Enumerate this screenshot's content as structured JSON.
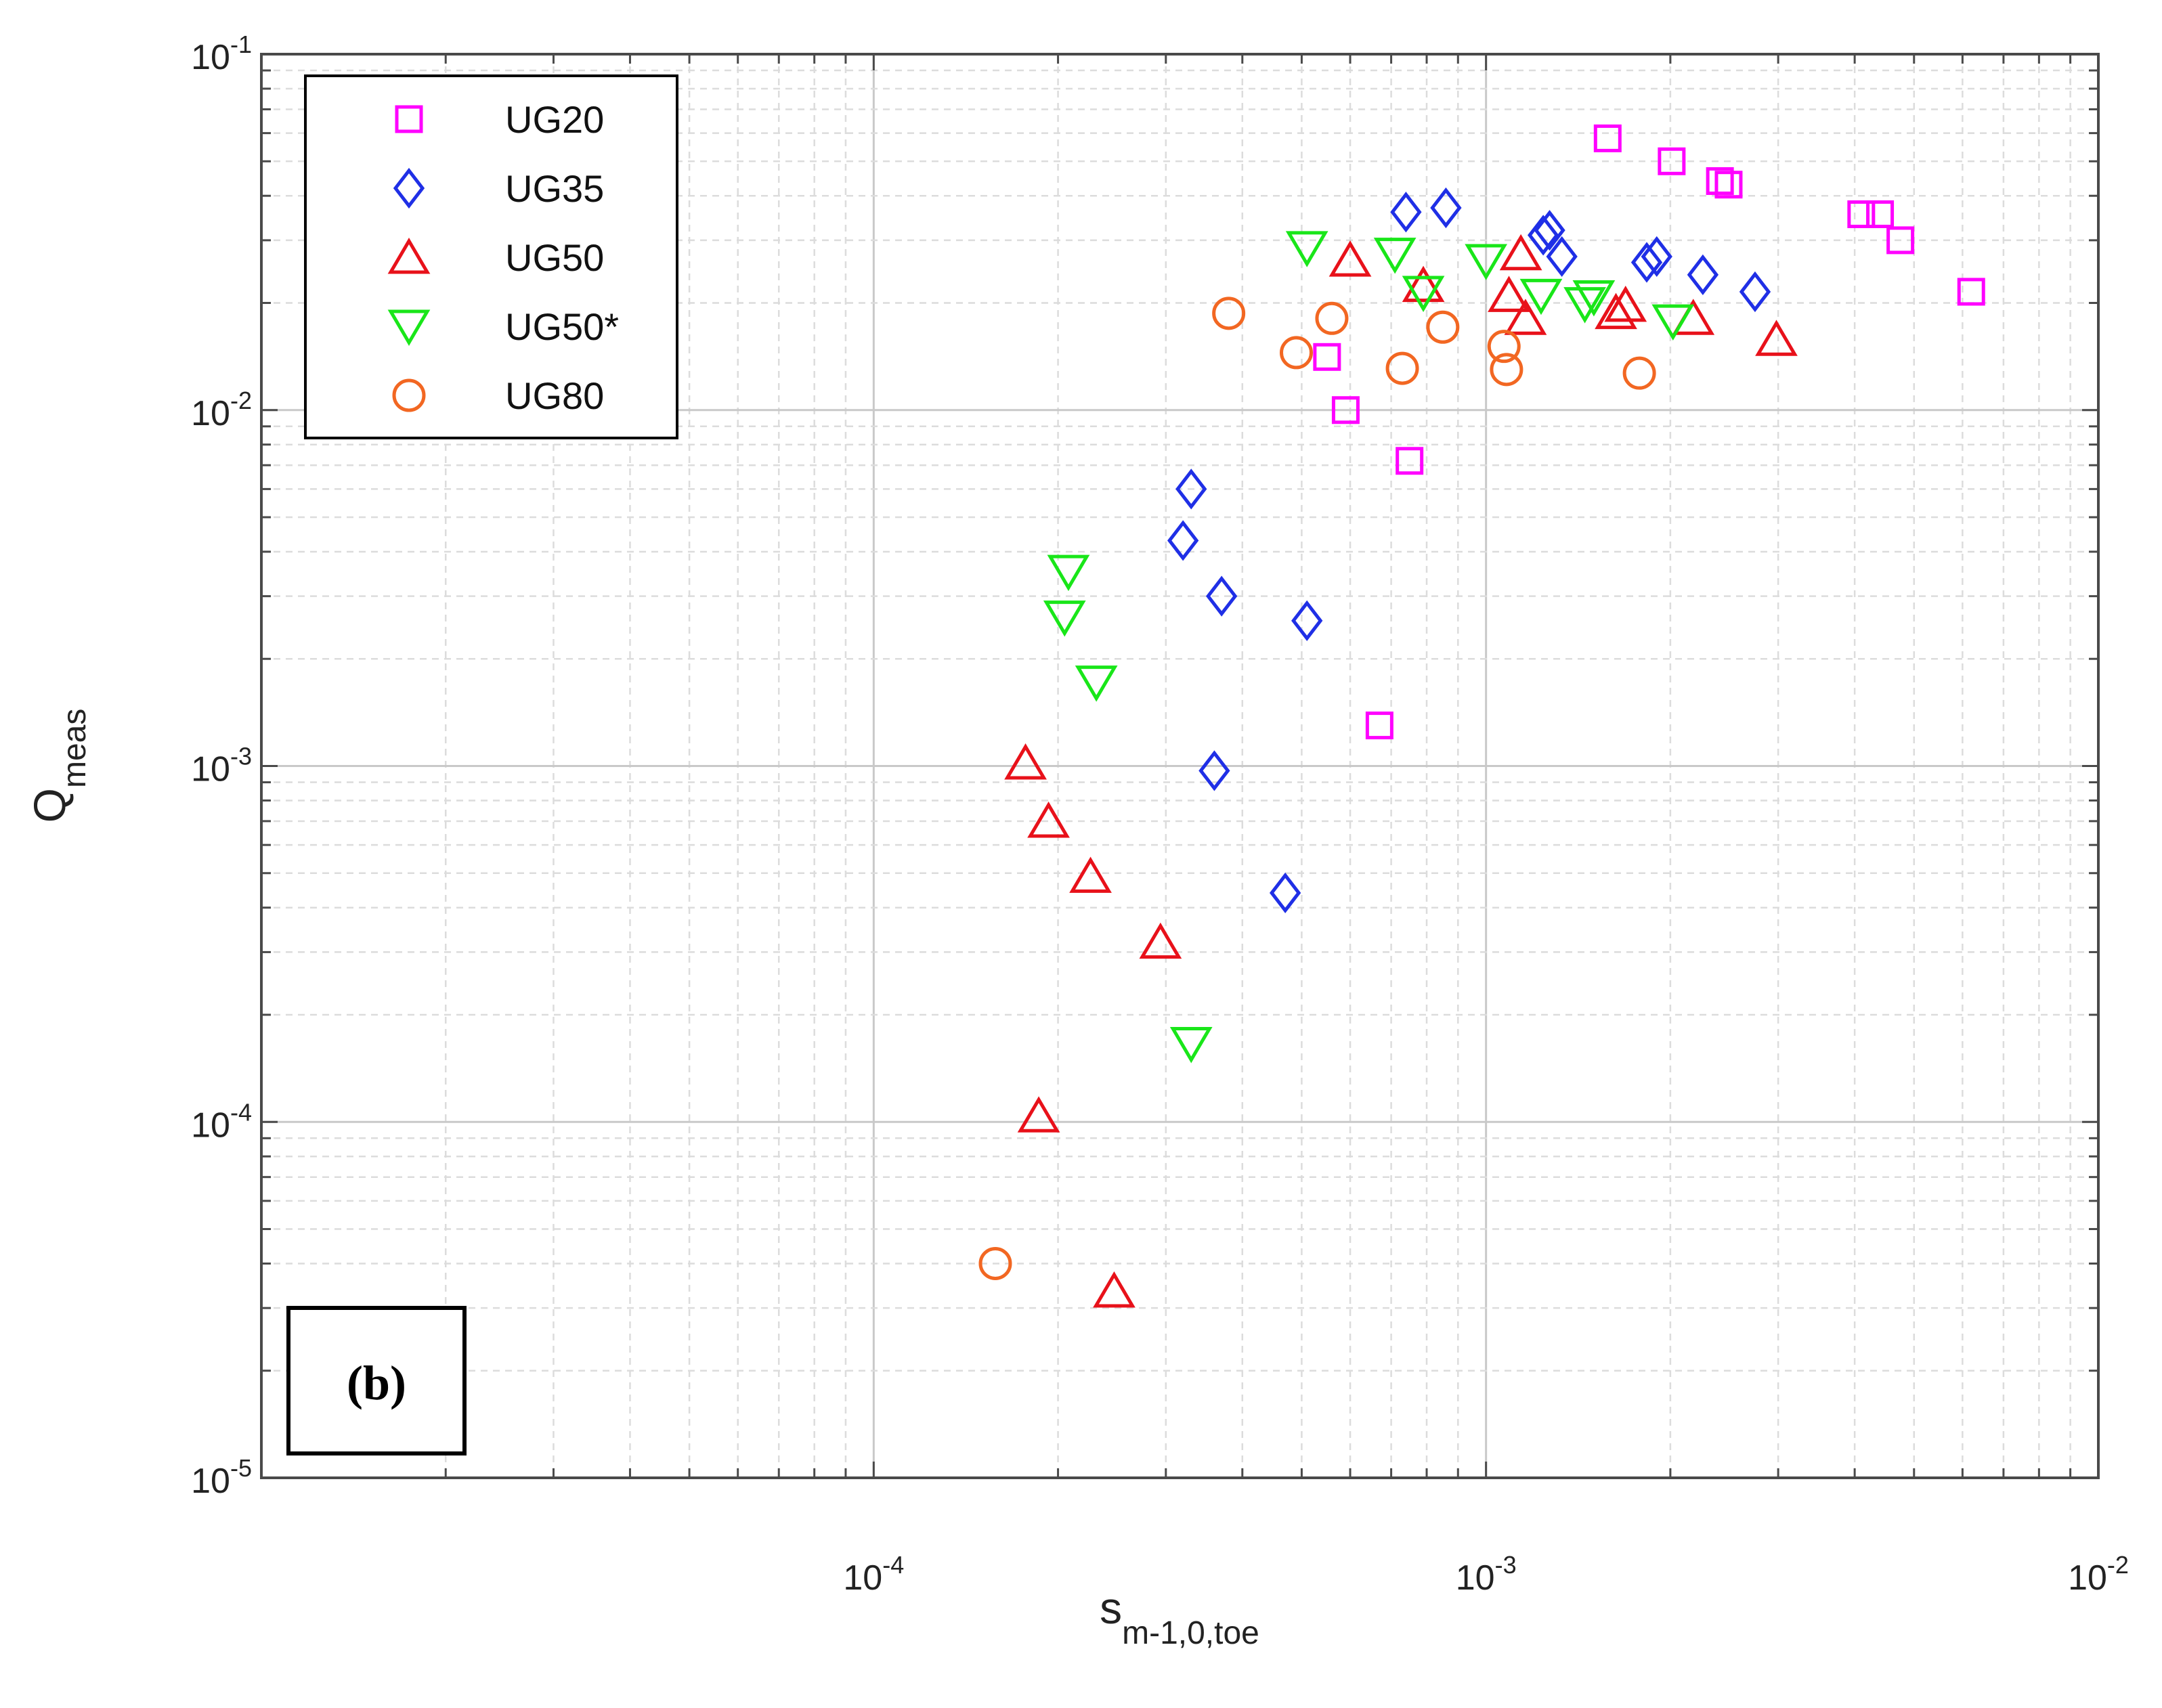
{
  "chart_data": {
    "type": "scatter",
    "title": "",
    "xlabel": {
      "base": "s",
      "subscript": "m-1,0,toe"
    },
    "ylabel": {
      "base": "Q",
      "subscript": "meas"
    },
    "xscale": "log",
    "yscale": "log",
    "xlim": [
      1e-05,
      0.01
    ],
    "ylim": [
      1e-05,
      0.1
    ],
    "grid": true,
    "x_ticks": [
      {
        "value": 0.0001,
        "base": "10",
        "exp": "-4"
      },
      {
        "value": 0.001,
        "base": "10",
        "exp": "-3"
      },
      {
        "value": 0.01,
        "base": "10",
        "exp": "-2"
      }
    ],
    "y_ticks": [
      {
        "value": 1e-05,
        "base": "10",
        "exp": "-5"
      },
      {
        "value": 0.0001,
        "base": "10",
        "exp": "-4"
      },
      {
        "value": 0.001,
        "base": "10",
        "exp": "-3"
      },
      {
        "value": 0.01,
        "base": "10",
        "exp": "-2"
      },
      {
        "value": 0.1,
        "base": "10",
        "exp": "-1"
      }
    ],
    "legend_position": "top-left",
    "panel_label": "(b)",
    "series": [
      {
        "name": "UG20",
        "marker": "square",
        "color": "#ff00ff",
        "points": [
          [
            0.00055,
            0.0141
          ],
          [
            0.00059,
            0.01
          ],
          [
            0.00075,
            0.0072
          ],
          [
            0.00067,
            0.0013
          ],
          [
            0.00158,
            0.058
          ],
          [
            0.00201,
            0.05
          ],
          [
            0.00241,
            0.044
          ],
          [
            0.00249,
            0.043
          ],
          [
            0.0041,
            0.0355
          ],
          [
            0.0044,
            0.0355
          ],
          [
            0.00475,
            0.03
          ],
          [
            0.0062,
            0.0215
          ]
        ]
      },
      {
        "name": "UG35",
        "marker": "diamond",
        "color": "#1f2fe6",
        "points": [
          [
            0.00074,
            0.036
          ],
          [
            0.00086,
            0.037
          ],
          [
            0.00124,
            0.031
          ],
          [
            0.00127,
            0.032
          ],
          [
            0.00133,
            0.027
          ],
          [
            0.00183,
            0.026
          ],
          [
            0.0019,
            0.027
          ],
          [
            0.00226,
            0.024
          ],
          [
            0.00275,
            0.0215
          ],
          [
            0.00033,
            0.006
          ],
          [
            0.00032,
            0.0043
          ],
          [
            0.00037,
            0.003
          ],
          [
            0.00051,
            0.00256
          ],
          [
            0.00036,
            0.00097
          ],
          [
            0.00047,
            0.00044
          ]
        ]
      },
      {
        "name": "UG50",
        "marker": "triangle-up",
        "color": "#e8111a",
        "points": [
          [
            0.0006,
            0.0264
          ],
          [
            0.00079,
            0.0224
          ],
          [
            0.00109,
            0.021
          ],
          [
            0.00114,
            0.0275
          ],
          [
            0.00116,
            0.0181
          ],
          [
            0.00163,
            0.0188
          ],
          [
            0.00169,
            0.0197
          ],
          [
            0.00218,
            0.0181
          ],
          [
            0.00298,
            0.0158
          ],
          [
            0.000177,
            0.00102
          ],
          [
            0.000193,
            0.0007
          ],
          [
            0.000226,
            0.00049
          ],
          [
            0.000294,
            0.00032
          ],
          [
            0.000186,
            0.000104
          ],
          [
            0.000247,
            3.35e-05
          ]
        ]
      },
      {
        "name": "UG50*",
        "marker": "triangle-down",
        "color": "#19e619",
        "points": [
          [
            0.00051,
            0.0286
          ],
          [
            0.00071,
            0.0274
          ],
          [
            0.00079,
            0.0214
          ],
          [
            0.001,
            0.0263
          ],
          [
            0.00123,
            0.021
          ],
          [
            0.00145,
            0.0199
          ],
          [
            0.0015,
            0.0208
          ],
          [
            0.00202,
            0.0178
          ],
          [
            0.000208,
            0.00352
          ],
          [
            0.000205,
            0.00262
          ],
          [
            0.000231,
            0.00172
          ],
          [
            0.00033,
            0.000166
          ]
        ]
      },
      {
        "name": "UG80",
        "marker": "circle",
        "color": "#f26722",
        "points": [
          [
            0.00038,
            0.0187
          ],
          [
            0.00049,
            0.0145
          ],
          [
            0.00056,
            0.0181
          ],
          [
            0.00073,
            0.0131
          ],
          [
            0.00085,
            0.0171
          ],
          [
            0.00107,
            0.0151
          ],
          [
            0.00108,
            0.013
          ],
          [
            0.00178,
            0.0127
          ],
          [
            0.000158,
            4e-05
          ]
        ]
      }
    ]
  }
}
